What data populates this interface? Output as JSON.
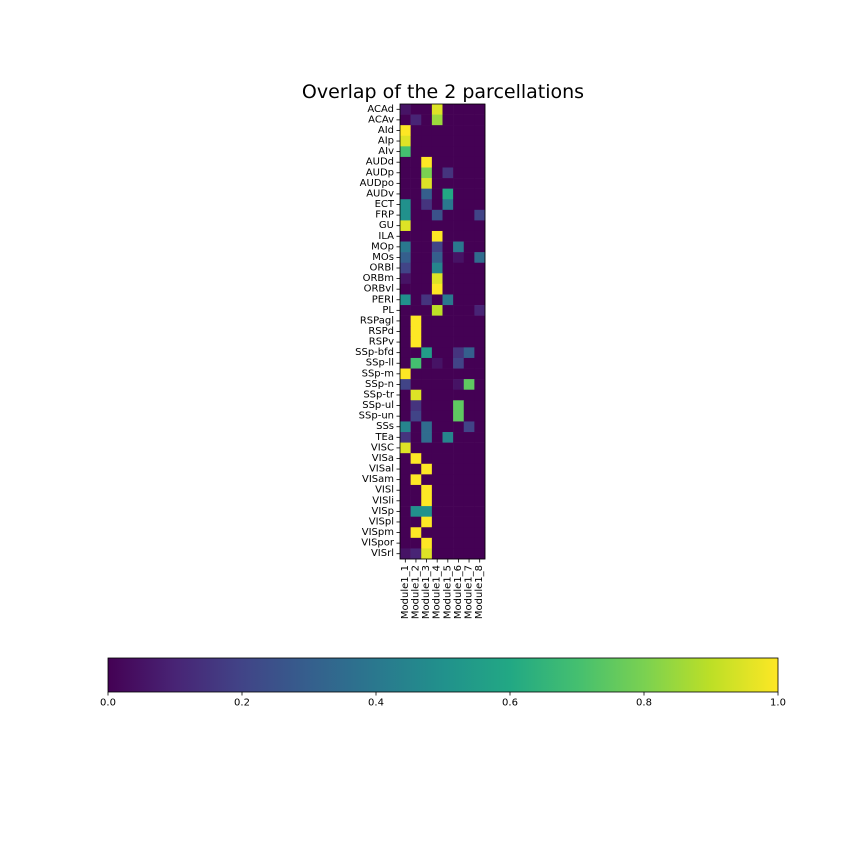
{
  "chart_data": {
    "type": "heatmap",
    "title": "Overlap of the 2 parcellations",
    "xlabel": "",
    "ylabel": "",
    "columns": [
      "Module1_1",
      "Module1_2",
      "Module1_3",
      "Module1_4",
      "Module1_5",
      "Module1_6",
      "Module1_7",
      "Module1_8"
    ],
    "rows": [
      "ACAd",
      "ACAv",
      "AId",
      "AIp",
      "AIv",
      "AUDd",
      "AUDp",
      "AUDpo",
      "AUDv",
      "ECT",
      "FRP",
      "GU",
      "ILA",
      "MOp",
      "MOs",
      "ORBl",
      "ORBm",
      "ORBvl",
      "PERI",
      "PL",
      "RSPagl",
      "RSPd",
      "RSPv",
      "SSp-bfd",
      "SSp-ll",
      "SSp-m",
      "SSp-n",
      "SSp-tr",
      "SSp-ul",
      "SSp-un",
      "SSs",
      "TEa",
      "VISC",
      "VISa",
      "VISal",
      "VISam",
      "VISl",
      "VISli",
      "VISp",
      "VISpl",
      "VISpm",
      "VISpor",
      "VISrl"
    ],
    "values": [
      [
        0.05,
        0.0,
        0.0,
        0.95,
        0.0,
        0.0,
        0.0,
        0.0
      ],
      [
        0.0,
        0.1,
        0.0,
        0.85,
        0.0,
        0.0,
        0.0,
        0.0
      ],
      [
        1.0,
        0.0,
        0.0,
        0.0,
        0.0,
        0.0,
        0.0,
        0.0
      ],
      [
        0.95,
        0.0,
        0.0,
        0.0,
        0.0,
        0.0,
        0.0,
        0.0
      ],
      [
        0.7,
        0.0,
        0.0,
        0.0,
        0.0,
        0.0,
        0.0,
        0.0
      ],
      [
        0.0,
        0.0,
        1.0,
        0.0,
        0.0,
        0.0,
        0.0,
        0.0
      ],
      [
        0.0,
        0.0,
        0.8,
        0.0,
        0.15,
        0.0,
        0.0,
        0.0
      ],
      [
        0.0,
        0.0,
        0.95,
        0.0,
        0.0,
        0.0,
        0.0,
        0.0
      ],
      [
        0.0,
        0.0,
        0.3,
        0.0,
        0.6,
        0.0,
        0.0,
        0.0
      ],
      [
        0.5,
        0.0,
        0.15,
        0.0,
        0.4,
        0.0,
        0.0,
        0.0
      ],
      [
        0.5,
        0.0,
        0.0,
        0.25,
        0.0,
        0.0,
        0.0,
        0.2
      ],
      [
        0.95,
        0.0,
        0.0,
        0.0,
        0.0,
        0.0,
        0.0,
        0.0
      ],
      [
        0.0,
        0.0,
        0.0,
        1.0,
        0.0,
        0.0,
        0.0,
        0.0
      ],
      [
        0.4,
        0.0,
        0.0,
        0.2,
        0.0,
        0.4,
        0.0,
        0.0
      ],
      [
        0.3,
        0.0,
        0.0,
        0.3,
        0.0,
        0.05,
        0.0,
        0.35
      ],
      [
        0.2,
        0.0,
        0.0,
        0.45,
        0.0,
        0.0,
        0.0,
        0.0
      ],
      [
        0.05,
        0.0,
        0.0,
        0.95,
        0.0,
        0.0,
        0.0,
        0.0
      ],
      [
        0.0,
        0.0,
        0.0,
        1.0,
        0.0,
        0.0,
        0.0,
        0.0
      ],
      [
        0.5,
        0.0,
        0.15,
        0.0,
        0.4,
        0.0,
        0.0,
        0.0
      ],
      [
        0.0,
        0.0,
        0.0,
        0.9,
        0.0,
        0.0,
        0.0,
        0.1
      ],
      [
        0.0,
        1.0,
        0.0,
        0.0,
        0.0,
        0.0,
        0.0,
        0.0
      ],
      [
        0.0,
        1.0,
        0.0,
        0.0,
        0.0,
        0.0,
        0.0,
        0.0
      ],
      [
        0.0,
        1.0,
        0.0,
        0.0,
        0.0,
        0.0,
        0.0,
        0.0
      ],
      [
        0.0,
        0.0,
        0.55,
        0.0,
        0.0,
        0.15,
        0.3,
        0.0
      ],
      [
        0.0,
        0.7,
        0.0,
        0.05,
        0.0,
        0.2,
        0.0,
        0.0
      ],
      [
        1.0,
        0.0,
        0.0,
        0.0,
        0.0,
        0.0,
        0.0,
        0.0
      ],
      [
        0.2,
        0.0,
        0.0,
        0.0,
        0.0,
        0.05,
        0.75,
        0.0
      ],
      [
        0.0,
        0.95,
        0.0,
        0.0,
        0.0,
        0.0,
        0.0,
        0.0
      ],
      [
        0.0,
        0.15,
        0.0,
        0.0,
        0.0,
        0.75,
        0.0,
        0.0
      ],
      [
        0.0,
        0.2,
        0.0,
        0.0,
        0.0,
        0.75,
        0.0,
        0.0
      ],
      [
        0.45,
        0.0,
        0.35,
        0.0,
        0.0,
        0.0,
        0.2,
        0.0
      ],
      [
        0.15,
        0.0,
        0.35,
        0.0,
        0.45,
        0.0,
        0.0,
        0.0
      ],
      [
        0.95,
        0.0,
        0.0,
        0.0,
        0.0,
        0.0,
        0.0,
        0.0
      ],
      [
        0.0,
        1.0,
        0.0,
        0.0,
        0.0,
        0.0,
        0.0,
        0.0
      ],
      [
        0.0,
        0.0,
        1.0,
        0.0,
        0.0,
        0.0,
        0.0,
        0.0
      ],
      [
        0.0,
        1.0,
        0.0,
        0.0,
        0.0,
        0.0,
        0.0,
        0.0
      ],
      [
        0.0,
        0.0,
        1.0,
        0.0,
        0.0,
        0.0,
        0.0,
        0.0
      ],
      [
        0.0,
        0.0,
        1.0,
        0.0,
        0.0,
        0.0,
        0.0,
        0.0
      ],
      [
        0.0,
        0.5,
        0.5,
        0.0,
        0.0,
        0.0,
        0.0,
        0.0
      ],
      [
        0.0,
        0.0,
        1.0,
        0.0,
        0.0,
        0.0,
        0.0,
        0.0
      ],
      [
        0.0,
        1.0,
        0.0,
        0.0,
        0.0,
        0.0,
        0.0,
        0.0
      ],
      [
        0.0,
        0.0,
        1.0,
        0.0,
        0.0,
        0.0,
        0.0,
        0.0
      ],
      [
        0.05,
        0.1,
        0.95,
        0.0,
        0.0,
        0.0,
        0.0,
        0.0
      ]
    ],
    "colormap": "viridis",
    "colorbar": {
      "orientation": "horizontal",
      "range": [
        0.0,
        1.0
      ],
      "ticks": [
        0.0,
        0.2,
        0.4,
        0.6,
        0.8,
        1.0
      ],
      "tick_labels": [
        "0.0",
        "0.2",
        "0.4",
        "0.6",
        "0.8",
        "1.0"
      ]
    },
    "grid": false,
    "legend": "none"
  }
}
